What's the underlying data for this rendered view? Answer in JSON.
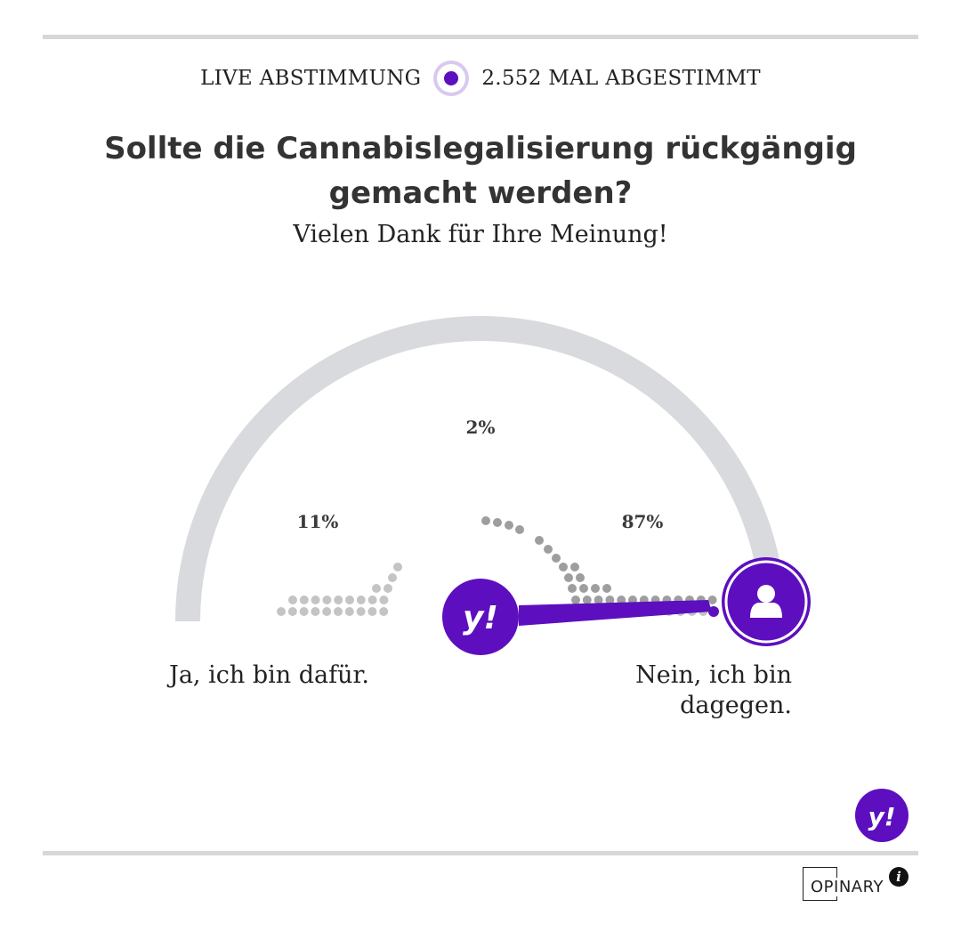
{
  "header": {
    "live_label": "LIVE ABSTIMMUNG",
    "votes_label": "2.552 MAL ABGESTIMMT",
    "live_icon": "live-pulse-icon"
  },
  "poll": {
    "question": "Sollte die Cannabislegalisierung rückgängig gemacht werden?",
    "thanks": "Vielen Dank für Ihre Meinung!",
    "answer_left": "Ja, ich bin dafür.",
    "answer_right": "Nein, ich bin dagegen."
  },
  "chart_data": {
    "type": "gauge",
    "results": [
      {
        "label": "Ja, ich bin dafür.",
        "percent": "11%",
        "value": 11
      },
      {
        "label": "",
        "percent": "2%",
        "value": 2
      },
      {
        "label": "Nein, ich bin dagegen.",
        "percent": "87%",
        "value": 87
      }
    ],
    "user_position": 1.0,
    "publisher_position": 0.5
  },
  "branding": {
    "publisher_logo": "yahoo-logo",
    "publisher_glyph": "y!",
    "opinary_label": "OPINARY",
    "info_glyph": "i"
  },
  "colors": {
    "accent": "#5d0fbf",
    "track": "#d9dade",
    "dot_light": "#c4c4c4",
    "dot_dark": "#9e9e9e"
  }
}
